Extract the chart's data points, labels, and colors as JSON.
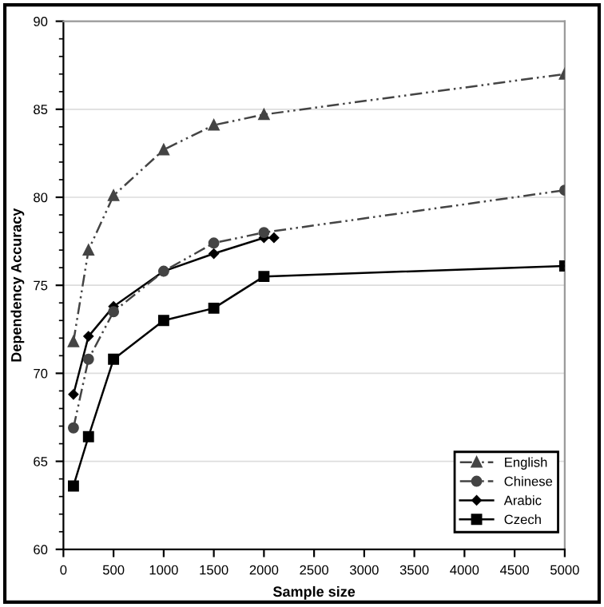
{
  "chart_data": {
    "type": "line",
    "xlabel": "Sample size",
    "ylabel": "Dependency Accuracy",
    "xlim": [
      0,
      5000
    ],
    "xticks": [
      0,
      500,
      1000,
      1500,
      2000,
      2500,
      3000,
      3500,
      4000,
      4500,
      5000
    ],
    "ylim": [
      60,
      90
    ],
    "yticks": [
      60,
      65,
      70,
      75,
      80,
      85,
      90
    ],
    "grid": "y",
    "legend": "bottom right",
    "series": [
      {
        "name": "English",
        "color": "#444444",
        "marker": "triangle",
        "line_style": "dashed",
        "x": [
          100,
          250,
          500,
          1000,
          1500,
          2000,
          5000
        ],
        "values": [
          71.8,
          77.0,
          80.1,
          82.7,
          84.1,
          84.7,
          87.0
        ]
      },
      {
        "name": "Chinese",
        "color": "#444444",
        "marker": "circle",
        "line_style": "dashed",
        "x": [
          100,
          250,
          500,
          1000,
          1500,
          2000,
          5000
        ],
        "values": [
          66.9,
          70.8,
          73.5,
          75.8,
          77.4,
          78.0,
          80.4
        ]
      },
      {
        "name": "Arabic",
        "color": "#000000",
        "marker": "diamond",
        "line_style": "solid",
        "x": [
          100,
          250,
          500,
          1000,
          1500,
          2000,
          2100
        ],
        "values": [
          68.8,
          72.1,
          73.8,
          75.8,
          76.8,
          77.7,
          77.7
        ]
      },
      {
        "name": "Czech",
        "color": "#000000",
        "marker": "square",
        "line_style": "solid",
        "x": [
          100,
          250,
          500,
          1000,
          1500,
          2000,
          5000
        ],
        "values": [
          63.6,
          66.4,
          70.8,
          73.0,
          73.7,
          75.5,
          76.1
        ]
      }
    ]
  }
}
